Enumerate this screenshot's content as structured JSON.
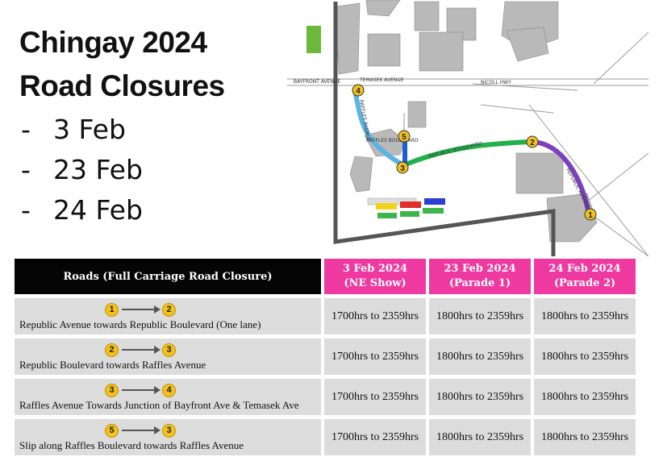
{
  "title": {
    "line1": "Chingay 2024",
    "line2": "Road Closures"
  },
  "dates": [
    {
      "dash": "-",
      "label": "3 Feb"
    },
    {
      "dash": "-",
      "label": "23 Feb"
    },
    {
      "dash": "-",
      "label": "24 Feb"
    }
  ],
  "map": {
    "labels": {
      "bayfront": "BAYFRONT AVENUE",
      "temasek": "TEMASEK AVENUE",
      "raffles_ave": "RAFFLES AVENUE",
      "republic_blvd": "REPUBLIC BOULEVARD",
      "republic_ave": "REPUBLIC AVENUE",
      "raffles_blvd": "RAFFLES BOULEVARD",
      "nicoll": "NICOLL HWY"
    },
    "markers": [
      "1",
      "2",
      "3",
      "4",
      "5"
    ],
    "segment_colors": {
      "av_1_2": "#7b3fbf",
      "blvd_2_3": "#21b04b",
      "raffles_3_4": "#5bb3e6",
      "slip_5_3": "#1f5fcf"
    }
  },
  "table": {
    "header": {
      "roads": "Roads (Full Carriage Road Closure)"
    },
    "dates": [
      {
        "line1": "3 Feb 2024",
        "line2": "(NE Show)"
      },
      {
        "line1": "23 Feb 2024",
        "line2": "(Parade 1)"
      },
      {
        "line1": "24 Feb 2024",
        "line2": "(Parade 2)"
      }
    ],
    "rows": [
      {
        "from": "1",
        "to": "2",
        "road": "Republic Avenue towards Republic Boulevard (One lane)",
        "times": [
          "1700hrs to 2359hrs",
          "1800hrs to 2359hrs",
          "1800hrs to 2359hrs"
        ]
      },
      {
        "from": "2",
        "to": "3",
        "road": "Republic Boulevard towards Raffles Avenue",
        "times": [
          "1700hrs to 2359hrs",
          "1800hrs to 2359hrs",
          "1800hrs to 2359hrs"
        ]
      },
      {
        "from": "3",
        "to": "4",
        "road": "Raffles Avenue Towards Junction of Bayfront Ave & Temasek Ave",
        "times": [
          "1700hrs to 2359hrs",
          "1800hrs to 2359hrs",
          "1800hrs to 2359hrs"
        ]
      },
      {
        "from": "5",
        "to": "3",
        "road": "Slip along Raffles Boulevard towards Raffles Avenue",
        "times": [
          "1700hrs to 2359hrs",
          "1800hrs to 2359hrs",
          "1800hrs to 2359hrs"
        ]
      }
    ]
  }
}
